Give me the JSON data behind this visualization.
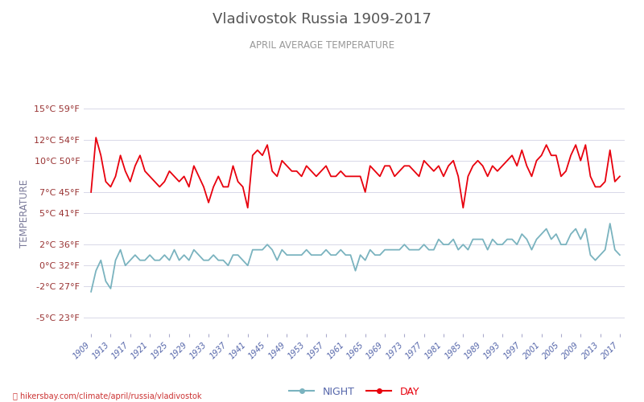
{
  "title": "Vladivostok Russia 1909-2017",
  "subtitle": "APRIL AVERAGE TEMPERATURE",
  "ylabel": "TEMPERATURE",
  "footer": "hikersbay.com/climate/april/russia/vladivostok",
  "years": [
    1909,
    1910,
    1911,
    1912,
    1913,
    1914,
    1915,
    1916,
    1917,
    1918,
    1919,
    1920,
    1921,
    1922,
    1923,
    1924,
    1925,
    1926,
    1927,
    1928,
    1929,
    1930,
    1931,
    1932,
    1933,
    1934,
    1935,
    1936,
    1937,
    1938,
    1939,
    1940,
    1941,
    1942,
    1943,
    1944,
    1945,
    1946,
    1947,
    1948,
    1949,
    1950,
    1951,
    1952,
    1953,
    1954,
    1955,
    1956,
    1957,
    1958,
    1959,
    1960,
    1961,
    1962,
    1963,
    1964,
    1965,
    1966,
    1967,
    1968,
    1969,
    1970,
    1971,
    1972,
    1973,
    1974,
    1975,
    1976,
    1977,
    1978,
    1979,
    1980,
    1981,
    1982,
    1983,
    1984,
    1985,
    1986,
    1987,
    1988,
    1989,
    1990,
    1991,
    1992,
    1993,
    1994,
    1995,
    1996,
    1997,
    1998,
    1999,
    2000,
    2001,
    2002,
    2003,
    2004,
    2005,
    2006,
    2007,
    2008,
    2009,
    2010,
    2011,
    2012,
    2013,
    2014,
    2015,
    2016,
    2017
  ],
  "day_temps": [
    7.0,
    12.2,
    10.5,
    8.0,
    7.5,
    8.5,
    10.5,
    9.0,
    8.0,
    9.5,
    10.5,
    9.0,
    8.5,
    8.0,
    7.5,
    8.0,
    9.0,
    8.5,
    8.0,
    8.5,
    7.5,
    9.5,
    8.5,
    7.5,
    6.0,
    7.5,
    8.5,
    7.5,
    7.5,
    9.5,
    8.0,
    7.5,
    5.5,
    10.5,
    11.0,
    10.5,
    11.5,
    9.0,
    8.5,
    10.0,
    9.5,
    9.0,
    9.0,
    8.5,
    9.5,
    9.0,
    8.5,
    9.0,
    9.5,
    8.5,
    8.5,
    9.0,
    8.5,
    8.5,
    8.5,
    8.5,
    7.0,
    9.5,
    9.0,
    8.5,
    9.5,
    9.5,
    8.5,
    9.0,
    9.5,
    9.5,
    9.0,
    8.5,
    10.0,
    9.5,
    9.0,
    9.5,
    8.5,
    9.5,
    10.0,
    8.5,
    5.5,
    8.5,
    9.5,
    10.0,
    9.5,
    8.5,
    9.5,
    9.0,
    9.5,
    10.0,
    10.5,
    9.5,
    11.0,
    9.5,
    8.5,
    10.0,
    10.5,
    11.5,
    10.5,
    10.5,
    8.5,
    9.0,
    10.5,
    11.5,
    10.0,
    11.5,
    8.5,
    7.5,
    7.5,
    8.0,
    11.0,
    8.0,
    8.5
  ],
  "night_temps": [
    -2.5,
    -0.5,
    0.5,
    -1.5,
    -2.2,
    0.5,
    1.5,
    0.0,
    0.5,
    1.0,
    0.5,
    0.5,
    1.0,
    0.5,
    0.5,
    1.0,
    0.5,
    1.5,
    0.5,
    1.0,
    0.5,
    1.5,
    1.0,
    0.5,
    0.5,
    1.0,
    0.5,
    0.5,
    0.0,
    1.0,
    1.0,
    0.5,
    0.0,
    1.5,
    1.5,
    1.5,
    2.0,
    1.5,
    0.5,
    1.5,
    1.0,
    1.0,
    1.0,
    1.0,
    1.5,
    1.0,
    1.0,
    1.0,
    1.5,
    1.0,
    1.0,
    1.5,
    1.0,
    1.0,
    -0.5,
    1.0,
    0.5,
    1.5,
    1.0,
    1.0,
    1.5,
    1.5,
    1.5,
    1.5,
    2.0,
    1.5,
    1.5,
    1.5,
    2.0,
    1.5,
    1.5,
    2.5,
    2.0,
    2.0,
    2.5,
    1.5,
    2.0,
    1.5,
    2.5,
    2.5,
    2.5,
    1.5,
    2.5,
    2.0,
    2.0,
    2.5,
    2.5,
    2.0,
    3.0,
    2.5,
    1.5,
    2.5,
    3.0,
    3.5,
    2.5,
    3.0,
    2.0,
    2.0,
    3.0,
    3.5,
    2.5,
    3.5,
    1.0,
    0.5,
    1.0,
    1.5,
    4.0,
    1.5,
    1.0
  ],
  "yticks_c": [
    -5,
    -2,
    0,
    2,
    5,
    7,
    10,
    12,
    15
  ],
  "yticks_f": [
    23,
    27,
    32,
    36,
    41,
    45,
    50,
    54,
    59
  ],
  "xtick_years": [
    1909,
    1913,
    1917,
    1921,
    1925,
    1929,
    1933,
    1937,
    1941,
    1945,
    1949,
    1953,
    1957,
    1961,
    1965,
    1969,
    1973,
    1977,
    1981,
    1985,
    1989,
    1993,
    1997,
    2001,
    2005,
    2009,
    2013,
    2017
  ],
  "day_color": "#e8000d",
  "night_color": "#7ab3bf",
  "title_color": "#555555",
  "subtitle_color": "#999999",
  "ylabel_color": "#7a7a9a",
  "tick_label_color": "#993333",
  "grid_color": "#d8d8e8",
  "bg_color": "#ffffff",
  "footer_color": "#cc3333",
  "line_width": 1.3,
  "ylim_min": -6.5,
  "ylim_max": 16.5,
  "xlim_min": 1907.5,
  "xlim_max": 2018.0
}
